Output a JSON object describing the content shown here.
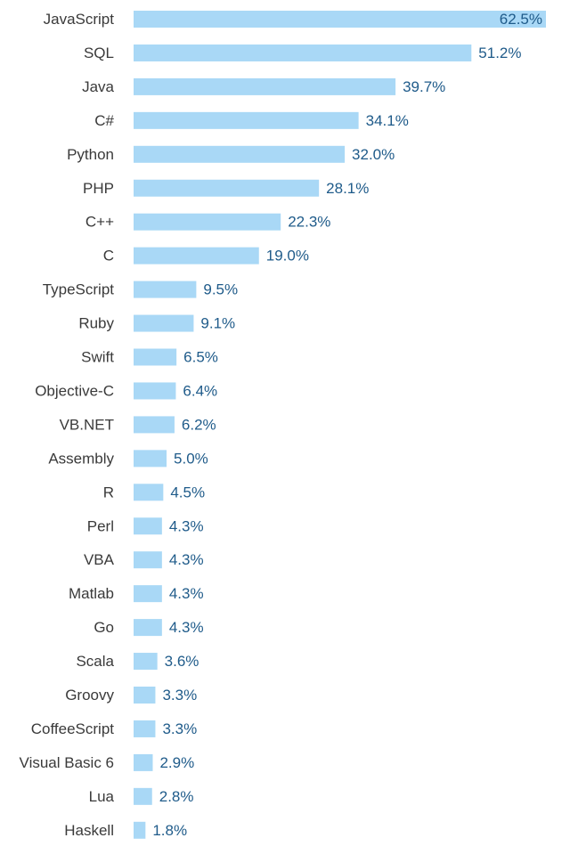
{
  "chart_data": {
    "type": "bar",
    "orientation": "horizontal",
    "title": "",
    "xlabel": "",
    "ylabel": "",
    "categories": [
      "JavaScript",
      "SQL",
      "Java",
      "C#",
      "Python",
      "PHP",
      "C++",
      "C",
      "TypeScript",
      "Ruby",
      "Swift",
      "Objective-C",
      "VB.NET",
      "Assembly",
      "R",
      "Perl",
      "VBA",
      "Matlab",
      "Go",
      "Scala",
      "Groovy",
      "CoffeeScript",
      "Visual Basic 6",
      "Lua",
      "Haskell"
    ],
    "values": [
      62.5,
      51.2,
      39.7,
      34.1,
      32.0,
      28.1,
      22.3,
      19.0,
      9.5,
      9.1,
      6.5,
      6.4,
      6.2,
      5.0,
      4.5,
      4.3,
      4.3,
      4.3,
      4.3,
      3.6,
      3.3,
      3.3,
      2.9,
      2.8,
      1.8
    ],
    "value_labels": [
      "62.5%",
      "51.2%",
      "39.7%",
      "34.1%",
      "32.0%",
      "28.1%",
      "22.3%",
      "19.0%",
      "9.5%",
      "9.1%",
      "6.5%",
      "6.4%",
      "6.2%",
      "5.0%",
      "4.5%",
      "4.3%",
      "4.3%",
      "4.3%",
      "4.3%",
      "3.6%",
      "3.3%",
      "3.3%",
      "2.9%",
      "2.8%",
      "1.8%"
    ],
    "xlim": [
      0,
      62.5
    ],
    "grid": false,
    "bar_color": "#a9d8f6",
    "value_label_color": "#1f5b8a",
    "category_label_color": "#3a3a3a"
  }
}
